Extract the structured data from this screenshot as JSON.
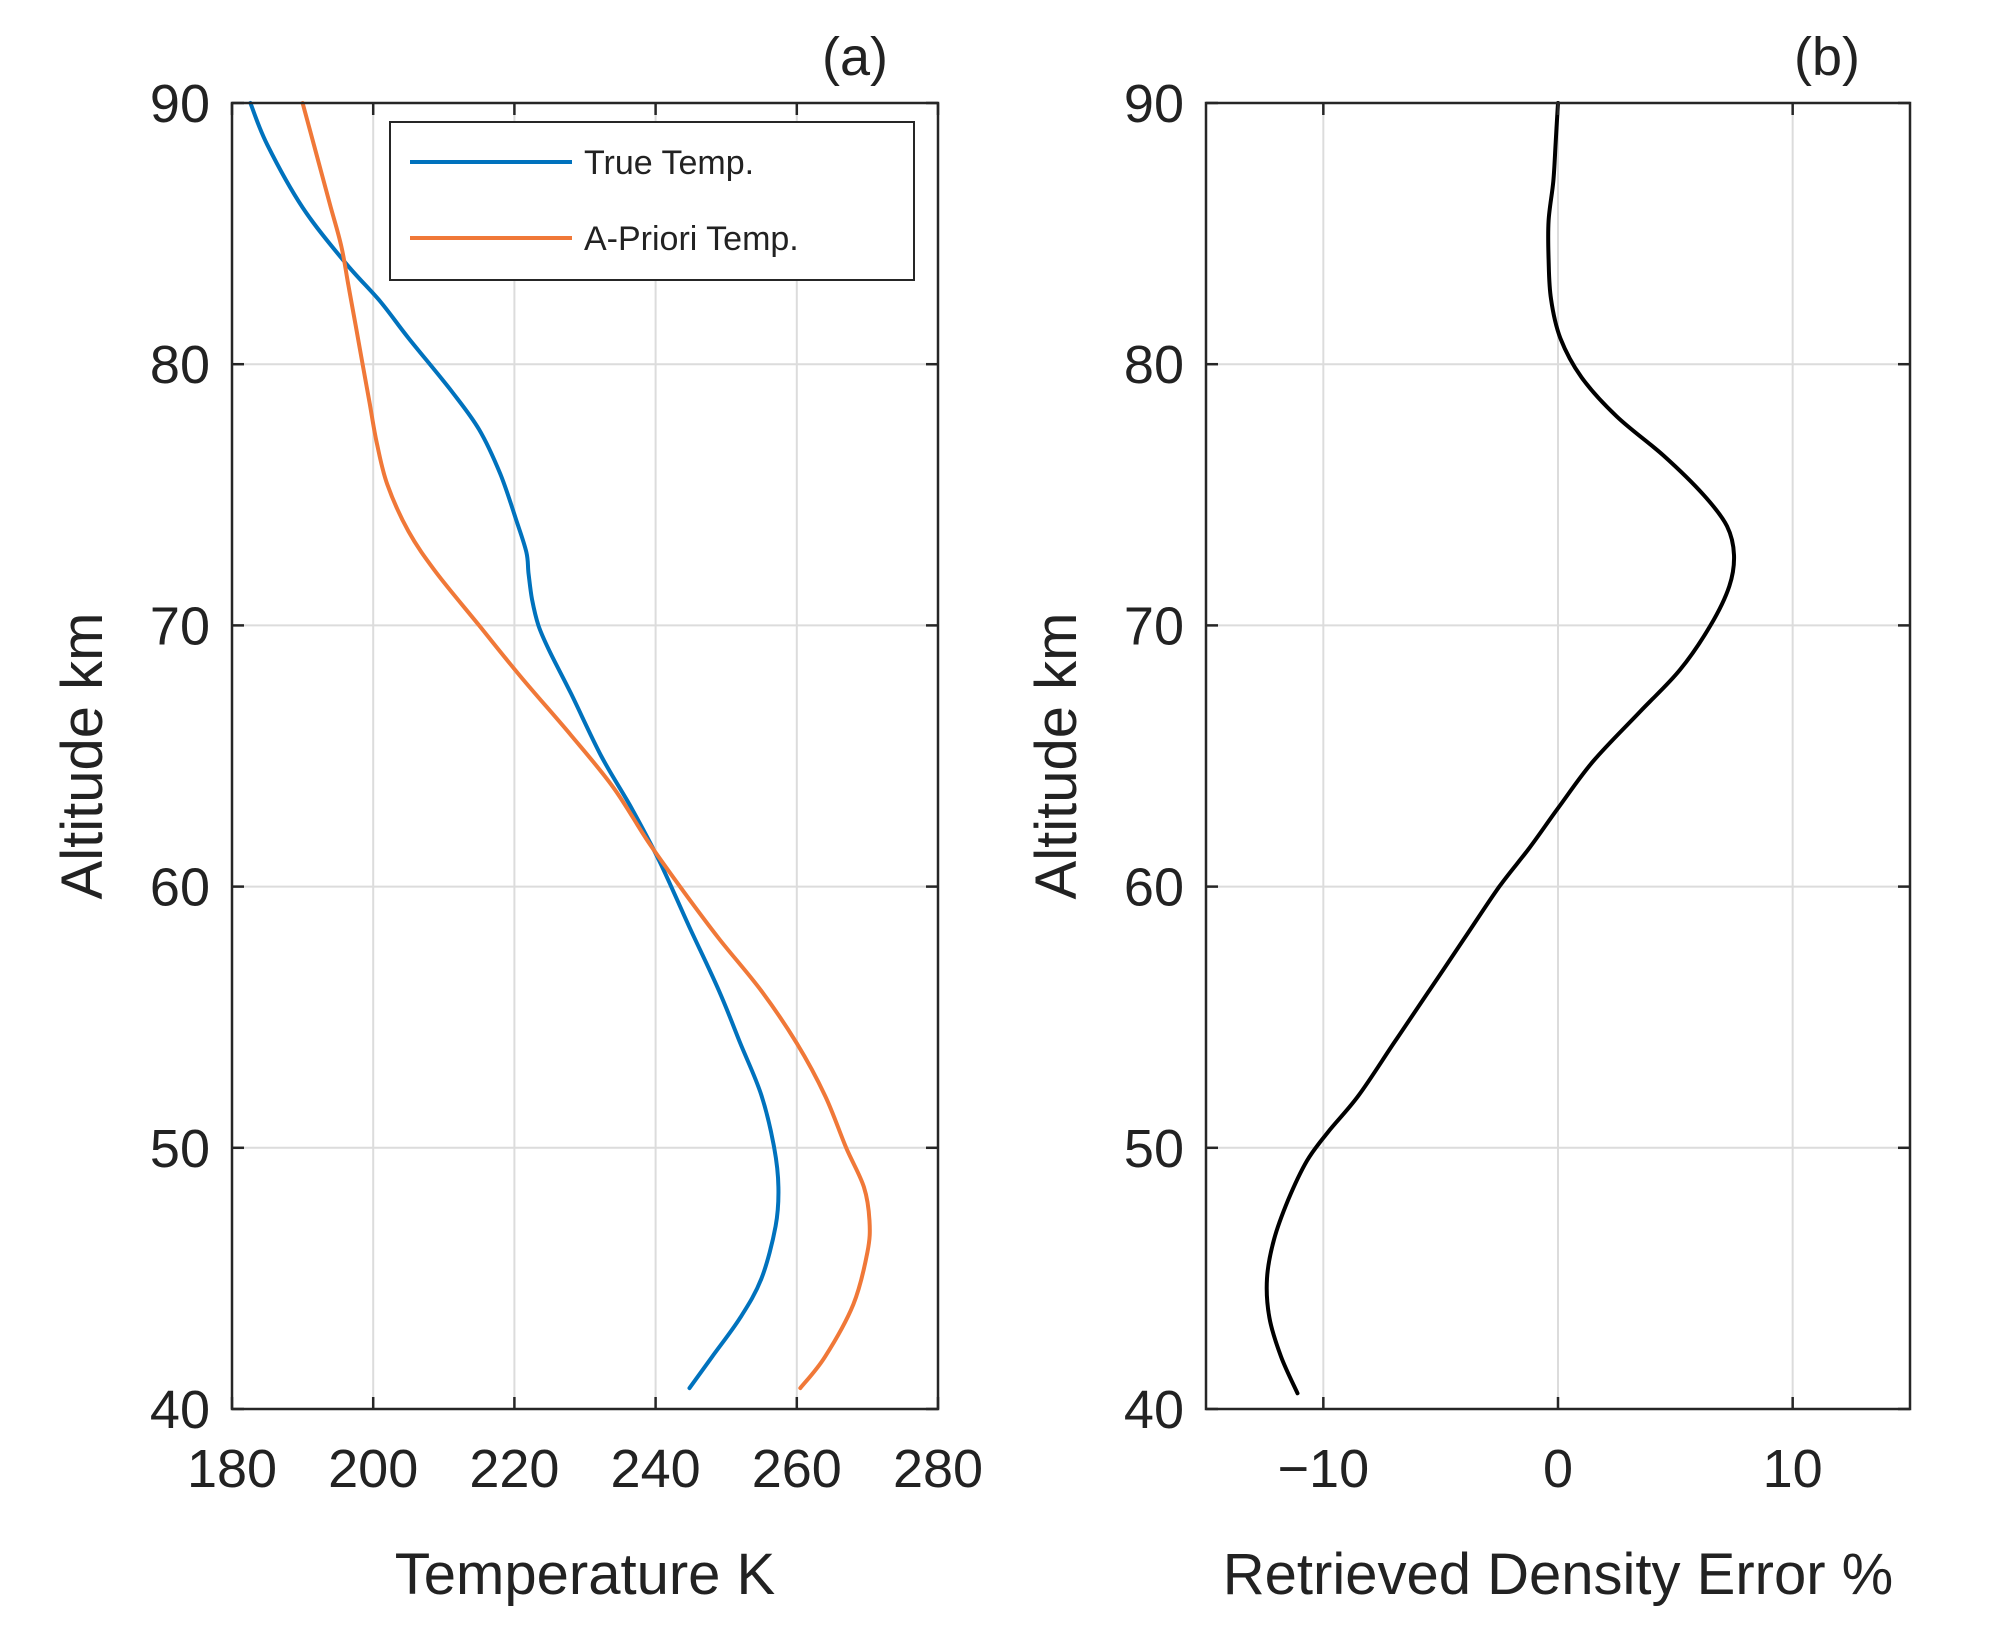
{
  "chart_data": [
    {
      "type": "line",
      "panel_label": "(a)",
      "xlabel": "Temperature K",
      "ylabel": "Altitude km",
      "xlim": [
        180,
        280
      ],
      "ylim": [
        40,
        90
      ],
      "xticks": [
        180,
        200,
        220,
        240,
        260,
        280
      ],
      "yticks": [
        40,
        50,
        60,
        70,
        80,
        90
      ],
      "grid": true,
      "legend_position": "top-right",
      "series": [
        {
          "name": "True Temp.",
          "color": "#0072BD",
          "points": [
            [
              244.8,
              40.8
            ],
            [
              248,
              42
            ],
            [
              252,
              43.5
            ],
            [
              255,
              45
            ],
            [
              257,
              47
            ],
            [
              257.4,
              48.5
            ],
            [
              256.8,
              50
            ],
            [
              255,
              52
            ],
            [
              252,
              54
            ],
            [
              249,
              56
            ],
            [
              244.7,
              58.5
            ],
            [
              240.5,
              61
            ],
            [
              236.6,
              63
            ],
            [
              232.3,
              65
            ],
            [
              228,
              67.4
            ],
            [
              225,
              69
            ],
            [
              223.4,
              70
            ],
            [
              222.5,
              71
            ],
            [
              222,
              72
            ],
            [
              221.7,
              72.8
            ],
            [
              220.3,
              74
            ],
            [
              218,
              75.8
            ],
            [
              215,
              77.5
            ],
            [
              211,
              79
            ],
            [
              205,
              81
            ],
            [
              201,
              82.4
            ],
            [
              196,
              83.9
            ],
            [
              190,
              86
            ],
            [
              185,
              88.4
            ],
            [
              182.6,
              90
            ]
          ]
        },
        {
          "name": "A-Priori Temp.",
          "color": "#F07838",
          "points": [
            [
              260.5,
              40.8
            ],
            [
              264,
              42
            ],
            [
              268,
              44
            ],
            [
              270,
              46
            ],
            [
              270.3,
              47.2
            ],
            [
              269.5,
              48.5
            ],
            [
              267,
              50
            ],
            [
              264,
              52
            ],
            [
              260,
              54
            ],
            [
              255,
              56
            ],
            [
              249,
              58
            ],
            [
              244,
              59.8
            ],
            [
              239,
              61.7
            ],
            [
              234,
              63.8
            ],
            [
              228,
              65.8
            ],
            [
              221,
              68
            ],
            [
              215,
              70
            ],
            [
              209,
              72
            ],
            [
              205,
              73.6
            ],
            [
              202,
              75.4
            ],
            [
              200.5,
              77
            ],
            [
              199.5,
              78.5
            ],
            [
              198.5,
              80
            ],
            [
              197.5,
              81.5
            ],
            [
              196.5,
              83
            ],
            [
              195.5,
              84.5
            ],
            [
              194,
              86
            ],
            [
              192,
              88
            ],
            [
              190,
              90
            ]
          ]
        }
      ]
    },
    {
      "type": "line",
      "panel_label": "(b)",
      "xlabel": "Retrieved Density Error %",
      "ylabel": "Altitude km",
      "xlim": [
        -15,
        15
      ],
      "ylim": [
        40,
        90
      ],
      "xticks": [
        -10,
        0,
        10
      ],
      "xtick_labels": [
        "−10",
        "0",
        "10"
      ],
      "yticks": [
        40,
        50,
        60,
        70,
        80,
        90
      ],
      "grid": true,
      "series": [
        {
          "name": "Retrieved Density Error",
          "color": "#000000",
          "points": [
            [
              -11.1,
              40.6
            ],
            [
              -11.8,
              42
            ],
            [
              -12.3,
              43.5
            ],
            [
              -12.4,
              45
            ],
            [
              -12.1,
              46.5
            ],
            [
              -11.5,
              48
            ],
            [
              -10.7,
              49.5
            ],
            [
              -9.8,
              50.6
            ],
            [
              -8.5,
              52
            ],
            [
              -7,
              54
            ],
            [
              -5.5,
              56
            ],
            [
              -4,
              58
            ],
            [
              -2.5,
              60
            ],
            [
              -1.2,
              61.5
            ],
            [
              0,
              63
            ],
            [
              1.5,
              64.8
            ],
            [
              3.5,
              66.7
            ],
            [
              5.2,
              68.3
            ],
            [
              6.5,
              70
            ],
            [
              7.3,
              71.5
            ],
            [
              7.5,
              72.7
            ],
            [
              7.2,
              73.8
            ],
            [
              6.2,
              75
            ],
            [
              4.5,
              76.5
            ],
            [
              2.5,
              78
            ],
            [
              1,
              79.5
            ],
            [
              0.1,
              81
            ],
            [
              -0.3,
              82.5
            ],
            [
              -0.4,
              84
            ],
            [
              -0.4,
              85.5
            ],
            [
              -0.2,
              87
            ],
            [
              -0.1,
              88.5
            ],
            [
              0,
              90
            ]
          ]
        }
      ]
    }
  ]
}
